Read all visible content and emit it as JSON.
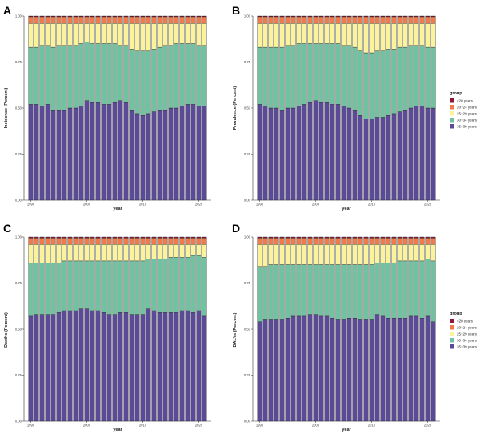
{
  "panels": [
    {
      "letter": "A",
      "ylabel": "Incidence (Percent)"
    },
    {
      "letter": "B",
      "ylabel": "Prevalence (Percent)"
    },
    {
      "letter": "C",
      "ylabel": "Deaths (Percent)"
    },
    {
      "letter": "D",
      "ylabel": "DALYs (Percent)"
    }
  ],
  "legend": {
    "title": "group",
    "items": [
      {
        "label": "<20 years",
        "color": "#8b1a3a"
      },
      {
        "label": "20~24 years",
        "color": "#f07a4c"
      },
      {
        "label": "25~29 years",
        "color": "#fbf29c"
      },
      {
        "label": "30~34 years",
        "color": "#6ec3a0"
      },
      {
        "label": "35~39 years",
        "color": "#5a4a97"
      }
    ]
  },
  "chart_data": [
    {
      "type": "bar",
      "stacked": true,
      "xlabel": "year",
      "ylabel": "Incidence (Percent)",
      "ylim": [
        0,
        1
      ],
      "yticks": [
        "0.00",
        "0.25",
        "0.50",
        "0.75",
        "1.00"
      ],
      "xticks": [
        "1990",
        "2000",
        "2010",
        "2020"
      ],
      "categories": [
        1990,
        1991,
        1992,
        1993,
        1994,
        1995,
        1996,
        1997,
        1998,
        1999,
        2000,
        2001,
        2002,
        2003,
        2004,
        2005,
        2006,
        2007,
        2008,
        2009,
        2010,
        2011,
        2012,
        2013,
        2014,
        2015,
        2016,
        2017,
        2018,
        2019,
        2020,
        2021
      ],
      "series": [
        {
          "name": "35~39 years",
          "values": [
            0.52,
            0.52,
            0.51,
            0.52,
            0.49,
            0.49,
            0.49,
            0.5,
            0.5,
            0.51,
            0.54,
            0.53,
            0.53,
            0.52,
            0.52,
            0.53,
            0.54,
            0.53,
            0.49,
            0.47,
            0.46,
            0.47,
            0.48,
            0.49,
            0.49,
            0.5,
            0.5,
            0.51,
            0.52,
            0.52,
            0.51,
            0.51
          ]
        },
        {
          "name": "30~34 years",
          "values": [
            0.31,
            0.31,
            0.33,
            0.32,
            0.34,
            0.35,
            0.35,
            0.34,
            0.34,
            0.34,
            0.32,
            0.32,
            0.32,
            0.33,
            0.33,
            0.32,
            0.3,
            0.31,
            0.33,
            0.34,
            0.35,
            0.34,
            0.34,
            0.34,
            0.35,
            0.34,
            0.35,
            0.34,
            0.33,
            0.33,
            0.33,
            0.33
          ]
        },
        {
          "name": "25~29 years",
          "values": [
            0.13,
            0.13,
            0.12,
            0.12,
            0.13,
            0.12,
            0.12,
            0.12,
            0.12,
            0.11,
            0.1,
            0.11,
            0.11,
            0.11,
            0.11,
            0.11,
            0.12,
            0.12,
            0.14,
            0.15,
            0.15,
            0.15,
            0.14,
            0.13,
            0.12,
            0.12,
            0.11,
            0.11,
            0.11,
            0.11,
            0.12,
            0.12
          ]
        },
        {
          "name": "20~24 years",
          "values": [
            0.036,
            0.036,
            0.036,
            0.036,
            0.036,
            0.036,
            0.036,
            0.036,
            0.036,
            0.036,
            0.036,
            0.036,
            0.036,
            0.036,
            0.036,
            0.036,
            0.036,
            0.036,
            0.036,
            0.036,
            0.036,
            0.036,
            0.036,
            0.036,
            0.036,
            0.036,
            0.036,
            0.036,
            0.036,
            0.036,
            0.036,
            0.036
          ]
        },
        {
          "name": "<20 years",
          "values": [
            0.004,
            0.004,
            0.004,
            0.004,
            0.004,
            0.004,
            0.004,
            0.004,
            0.004,
            0.004,
            0.004,
            0.004,
            0.004,
            0.004,
            0.004,
            0.004,
            0.004,
            0.004,
            0.004,
            0.004,
            0.004,
            0.004,
            0.004,
            0.004,
            0.004,
            0.004,
            0.004,
            0.004,
            0.004,
            0.004,
            0.004,
            0.004
          ]
        }
      ]
    },
    {
      "type": "bar",
      "stacked": true,
      "xlabel": "year",
      "ylabel": "Prevalence (Percent)",
      "ylim": [
        0,
        1
      ],
      "yticks": [
        "0.00",
        "0.25",
        "0.50",
        "0.75",
        "1.00"
      ],
      "xticks": [
        "1990",
        "2000",
        "2010",
        "2020"
      ],
      "categories": [
        1990,
        1991,
        1992,
        1993,
        1994,
        1995,
        1996,
        1997,
        1998,
        1999,
        2000,
        2001,
        2002,
        2003,
        2004,
        2005,
        2006,
        2007,
        2008,
        2009,
        2010,
        2011,
        2012,
        2013,
        2014,
        2015,
        2016,
        2017,
        2018,
        2019,
        2020,
        2021
      ],
      "series": [
        {
          "name": "35~39 years",
          "values": [
            0.52,
            0.51,
            0.5,
            0.5,
            0.49,
            0.5,
            0.5,
            0.51,
            0.52,
            0.53,
            0.54,
            0.53,
            0.53,
            0.52,
            0.52,
            0.51,
            0.5,
            0.49,
            0.46,
            0.44,
            0.44,
            0.45,
            0.45,
            0.46,
            0.47,
            0.48,
            0.49,
            0.5,
            0.51,
            0.51,
            0.5,
            0.5
          ]
        },
        {
          "name": "30~34 years",
          "values": [
            0.31,
            0.32,
            0.33,
            0.33,
            0.34,
            0.34,
            0.34,
            0.34,
            0.33,
            0.32,
            0.31,
            0.32,
            0.32,
            0.33,
            0.33,
            0.33,
            0.34,
            0.34,
            0.35,
            0.36,
            0.36,
            0.36,
            0.36,
            0.36,
            0.35,
            0.35,
            0.34,
            0.34,
            0.33,
            0.33,
            0.33,
            0.33
          ]
        },
        {
          "name": "25~29 years",
          "values": [
            0.13,
            0.13,
            0.13,
            0.13,
            0.13,
            0.12,
            0.12,
            0.11,
            0.11,
            0.11,
            0.11,
            0.11,
            0.11,
            0.11,
            0.11,
            0.12,
            0.12,
            0.13,
            0.15,
            0.16,
            0.16,
            0.15,
            0.15,
            0.14,
            0.14,
            0.13,
            0.13,
            0.12,
            0.12,
            0.12,
            0.13,
            0.13
          ]
        },
        {
          "name": "20~24 years",
          "values": [
            0.036,
            0.036,
            0.036,
            0.036,
            0.036,
            0.036,
            0.036,
            0.036,
            0.036,
            0.036,
            0.036,
            0.036,
            0.036,
            0.036,
            0.036,
            0.036,
            0.036,
            0.036,
            0.036,
            0.036,
            0.036,
            0.036,
            0.036,
            0.036,
            0.036,
            0.036,
            0.036,
            0.036,
            0.036,
            0.036,
            0.036,
            0.036
          ]
        },
        {
          "name": "<20 years",
          "values": [
            0.004,
            0.004,
            0.004,
            0.004,
            0.004,
            0.004,
            0.004,
            0.004,
            0.004,
            0.004,
            0.004,
            0.004,
            0.004,
            0.004,
            0.004,
            0.004,
            0.004,
            0.004,
            0.004,
            0.004,
            0.004,
            0.004,
            0.004,
            0.004,
            0.004,
            0.004,
            0.004,
            0.004,
            0.004,
            0.004,
            0.004,
            0.004
          ]
        }
      ]
    },
    {
      "type": "bar",
      "stacked": true,
      "xlabel": "year",
      "ylabel": "Deaths (Percent)",
      "ylim": [
        0,
        1
      ],
      "yticks": [
        "0.00",
        "0.25",
        "0.50",
        "0.75",
        "1.00"
      ],
      "xticks": [
        "1990",
        "2000",
        "2010",
        "2020"
      ],
      "categories": [
        1990,
        1991,
        1992,
        1993,
        1994,
        1995,
        1996,
        1997,
        1998,
        1999,
        2000,
        2001,
        2002,
        2003,
        2004,
        2005,
        2006,
        2007,
        2008,
        2009,
        2010,
        2011,
        2012,
        2013,
        2014,
        2015,
        2016,
        2017,
        2018,
        2019,
        2020,
        2021
      ],
      "series": [
        {
          "name": "35~39 years",
          "values": [
            0.57,
            0.58,
            0.58,
            0.58,
            0.58,
            0.59,
            0.6,
            0.6,
            0.6,
            0.61,
            0.61,
            0.6,
            0.6,
            0.59,
            0.58,
            0.58,
            0.59,
            0.59,
            0.58,
            0.58,
            0.58,
            0.61,
            0.6,
            0.59,
            0.59,
            0.59,
            0.59,
            0.6,
            0.6,
            0.59,
            0.6,
            0.57
          ]
        },
        {
          "name": "30~34 years",
          "values": [
            0.29,
            0.28,
            0.28,
            0.28,
            0.28,
            0.27,
            0.27,
            0.27,
            0.27,
            0.26,
            0.26,
            0.27,
            0.27,
            0.28,
            0.29,
            0.29,
            0.28,
            0.28,
            0.29,
            0.29,
            0.29,
            0.27,
            0.28,
            0.29,
            0.29,
            0.3,
            0.3,
            0.29,
            0.29,
            0.31,
            0.3,
            0.32
          ]
        },
        {
          "name": "25~29 years",
          "values": [
            0.1,
            0.1,
            0.1,
            0.1,
            0.1,
            0.1,
            0.09,
            0.09,
            0.09,
            0.09,
            0.09,
            0.09,
            0.09,
            0.09,
            0.09,
            0.09,
            0.09,
            0.09,
            0.09,
            0.09,
            0.09,
            0.08,
            0.08,
            0.08,
            0.08,
            0.07,
            0.07,
            0.07,
            0.07,
            0.06,
            0.06,
            0.07
          ]
        },
        {
          "name": "20~24 years",
          "values": [
            0.035,
            0.035,
            0.035,
            0.035,
            0.035,
            0.035,
            0.035,
            0.035,
            0.035,
            0.035,
            0.035,
            0.035,
            0.035,
            0.035,
            0.035,
            0.035,
            0.035,
            0.035,
            0.035,
            0.035,
            0.035,
            0.035,
            0.035,
            0.035,
            0.035,
            0.035,
            0.035,
            0.035,
            0.035,
            0.035,
            0.035,
            0.035
          ]
        },
        {
          "name": "<20 years",
          "values": [
            0.005,
            0.005,
            0.005,
            0.005,
            0.005,
            0.005,
            0.005,
            0.005,
            0.005,
            0.005,
            0.005,
            0.005,
            0.005,
            0.005,
            0.005,
            0.005,
            0.005,
            0.005,
            0.005,
            0.005,
            0.005,
            0.005,
            0.005,
            0.005,
            0.005,
            0.005,
            0.005,
            0.005,
            0.005,
            0.005,
            0.005,
            0.005
          ]
        }
      ]
    },
    {
      "type": "bar",
      "stacked": true,
      "xlabel": "year",
      "ylabel": "DALYs (Percent)",
      "ylim": [
        0,
        1
      ],
      "yticks": [
        "0.00",
        "0.25",
        "0.50",
        "0.75",
        "1.00"
      ],
      "xticks": [
        "1990",
        "2000",
        "2010",
        "2020"
      ],
      "categories": [
        1990,
        1991,
        1992,
        1993,
        1994,
        1995,
        1996,
        1997,
        1998,
        1999,
        2000,
        2001,
        2002,
        2003,
        2004,
        2005,
        2006,
        2007,
        2008,
        2009,
        2010,
        2011,
        2012,
        2013,
        2014,
        2015,
        2016,
        2017,
        2018,
        2019,
        2020,
        2021
      ],
      "series": [
        {
          "name": "35~39 years",
          "values": [
            0.54,
            0.55,
            0.55,
            0.55,
            0.55,
            0.56,
            0.57,
            0.57,
            0.57,
            0.58,
            0.58,
            0.57,
            0.57,
            0.56,
            0.55,
            0.55,
            0.56,
            0.56,
            0.55,
            0.55,
            0.55,
            0.58,
            0.57,
            0.56,
            0.56,
            0.56,
            0.56,
            0.57,
            0.57,
            0.56,
            0.57,
            0.54
          ]
        },
        {
          "name": "30~34 years",
          "values": [
            0.3,
            0.29,
            0.3,
            0.3,
            0.3,
            0.29,
            0.28,
            0.28,
            0.28,
            0.27,
            0.27,
            0.28,
            0.28,
            0.29,
            0.3,
            0.3,
            0.29,
            0.29,
            0.3,
            0.3,
            0.3,
            0.28,
            0.29,
            0.3,
            0.3,
            0.31,
            0.31,
            0.3,
            0.3,
            0.31,
            0.31,
            0.33
          ]
        },
        {
          "name": "25~29 years",
          "values": [
            0.12,
            0.12,
            0.11,
            0.11,
            0.11,
            0.11,
            0.11,
            0.11,
            0.11,
            0.11,
            0.11,
            0.11,
            0.11,
            0.11,
            0.11,
            0.11,
            0.11,
            0.11,
            0.11,
            0.11,
            0.11,
            0.1,
            0.1,
            0.1,
            0.1,
            0.09,
            0.09,
            0.09,
            0.09,
            0.09,
            0.08,
            0.09
          ]
        },
        {
          "name": "20~24 years",
          "values": [
            0.035,
            0.035,
            0.035,
            0.035,
            0.035,
            0.035,
            0.035,
            0.035,
            0.035,
            0.035,
            0.035,
            0.035,
            0.035,
            0.035,
            0.035,
            0.035,
            0.035,
            0.035,
            0.035,
            0.035,
            0.035,
            0.035,
            0.035,
            0.035,
            0.035,
            0.035,
            0.035,
            0.035,
            0.035,
            0.035,
            0.035,
            0.035
          ]
        },
        {
          "name": "<20 years",
          "values": [
            0.005,
            0.005,
            0.005,
            0.005,
            0.005,
            0.005,
            0.005,
            0.005,
            0.005,
            0.005,
            0.005,
            0.005,
            0.005,
            0.005,
            0.005,
            0.005,
            0.005,
            0.005,
            0.005,
            0.005,
            0.005,
            0.005,
            0.005,
            0.005,
            0.005,
            0.005,
            0.005,
            0.005,
            0.005,
            0.005,
            0.005,
            0.005
          ]
        }
      ]
    }
  ]
}
